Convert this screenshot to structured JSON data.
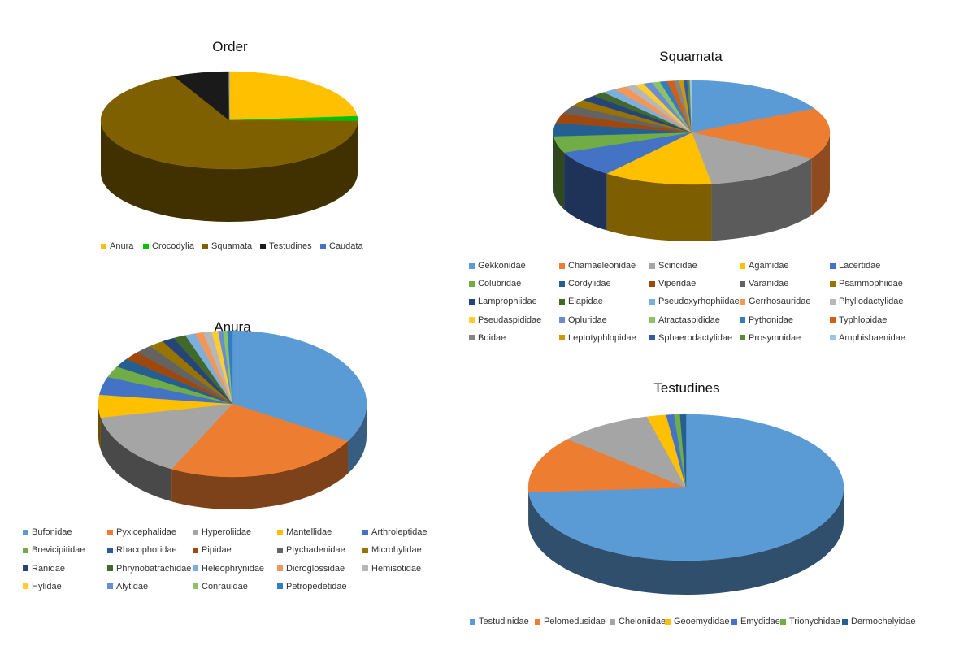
{
  "chart_data": [
    {
      "type": "pie",
      "title": "Order",
      "legend_position": "bottom",
      "labels": [
        "Anura",
        "Crocodylia",
        "Squamata",
        "Testudines",
        "Caudata"
      ],
      "values": [
        23.7,
        1.6,
        67.7,
        7.0,
        0.1
      ],
      "colors": [
        "#ffc000",
        "#00c000",
        "#7f6000",
        "#1a1a1a",
        "#4472c4"
      ]
    },
    {
      "type": "pie",
      "title": "Squamata",
      "legend_position": "bottom",
      "labels": [
        "Gekkonidae",
        "Chamaeleonidae",
        "Scincidae",
        "Agamidae",
        "Lacertidae",
        "Colubridae",
        "Cordylidae",
        "Viperidae",
        "Varanidae",
        "Psammophiidae",
        "Lamprophiidae",
        "Elapidae",
        "Pseudoxyrhophiidae",
        "Gerrhosauridae",
        "Phyllodactylidae",
        "Pseudaspididae",
        "Opluridae",
        "Atractaspididae",
        "Pythonidae",
        "Typhlopidae",
        "Boidae",
        "Leptotyphlopidae",
        "Sphaerodactylidae",
        "Prosymnidae",
        "Amphisbaenidae"
      ],
      "values": [
        17.0,
        15.5,
        14.0,
        12.5,
        8.0,
        5.0,
        4.0,
        3.0,
        2.5,
        2.0,
        1.8,
        1.5,
        1.5,
        1.5,
        1.2,
        1.0,
        1.0,
        0.9,
        0.8,
        0.8,
        0.6,
        0.5,
        0.4,
        0.3,
        0.2
      ],
      "colors": [
        "#5b9bd5",
        "#ed7d31",
        "#a5a5a5",
        "#ffc000",
        "#4472c4",
        "#70ad47",
        "#255e91",
        "#9e480e",
        "#636363",
        "#997300",
        "#264478",
        "#43682b",
        "#7cafdd",
        "#f1975a",
        "#b7b7b7",
        "#ffcd33",
        "#698ed0",
        "#8cc168",
        "#327dc2",
        "#d26012",
        "#848484",
        "#cc9a00",
        "#335aa1",
        "#5a8a39",
        "#9dc3e6"
      ]
    },
    {
      "type": "pie",
      "title": "Anura",
      "legend_position": "bottom",
      "labels": [
        "Bufonidae",
        "Pyxicephalidae",
        "Hyperoliidae",
        "Mantellidae",
        "Arthroleptidae",
        "Brevicipitidae",
        "Rhacophoridae",
        "Pipidae",
        "Ptychadenidae",
        "Microhylidae",
        "Ranidae",
        "Phrynobatrachidae",
        "Heleophrynidae",
        "Dicroglossidae",
        "Hemisotidae",
        "Hylidae",
        "Alytidae",
        "Conrauidae",
        "Petropedetidae"
      ],
      "values": [
        33.5,
        24.0,
        14.5,
        5.0,
        4.0,
        2.5,
        2.0,
        2.0,
        2.0,
        1.8,
        1.5,
        1.5,
        1.2,
        1.0,
        1.0,
        0.8,
        0.6,
        0.5,
        0.6
      ],
      "colors": [
        "#5b9bd5",
        "#ed7d31",
        "#a5a5a5",
        "#ffc000",
        "#4472c4",
        "#70ad47",
        "#255e91",
        "#9e480e",
        "#636363",
        "#997300",
        "#264478",
        "#43682b",
        "#7cafdd",
        "#f1975a",
        "#b7b7b7",
        "#ffcd33",
        "#698ed0",
        "#8cc168",
        "#327dc2"
      ]
    },
    {
      "type": "pie",
      "title": "Testudines",
      "legend_position": "bottom",
      "labels": [
        "Testudinidae",
        "Pelomedusidae",
        "Cheloniidae",
        "Geoemydidae",
        "Emydidae",
        "Trionychidae",
        "Dermochelyidae"
      ],
      "values": [
        74.0,
        12.5,
        9.5,
        2.0,
        0.8,
        0.6,
        0.6
      ],
      "colors": [
        "#5b9bd5",
        "#ed7d31",
        "#a5a5a5",
        "#ffc000",
        "#4472c4",
        "#70ad47",
        "#255e91"
      ]
    }
  ]
}
